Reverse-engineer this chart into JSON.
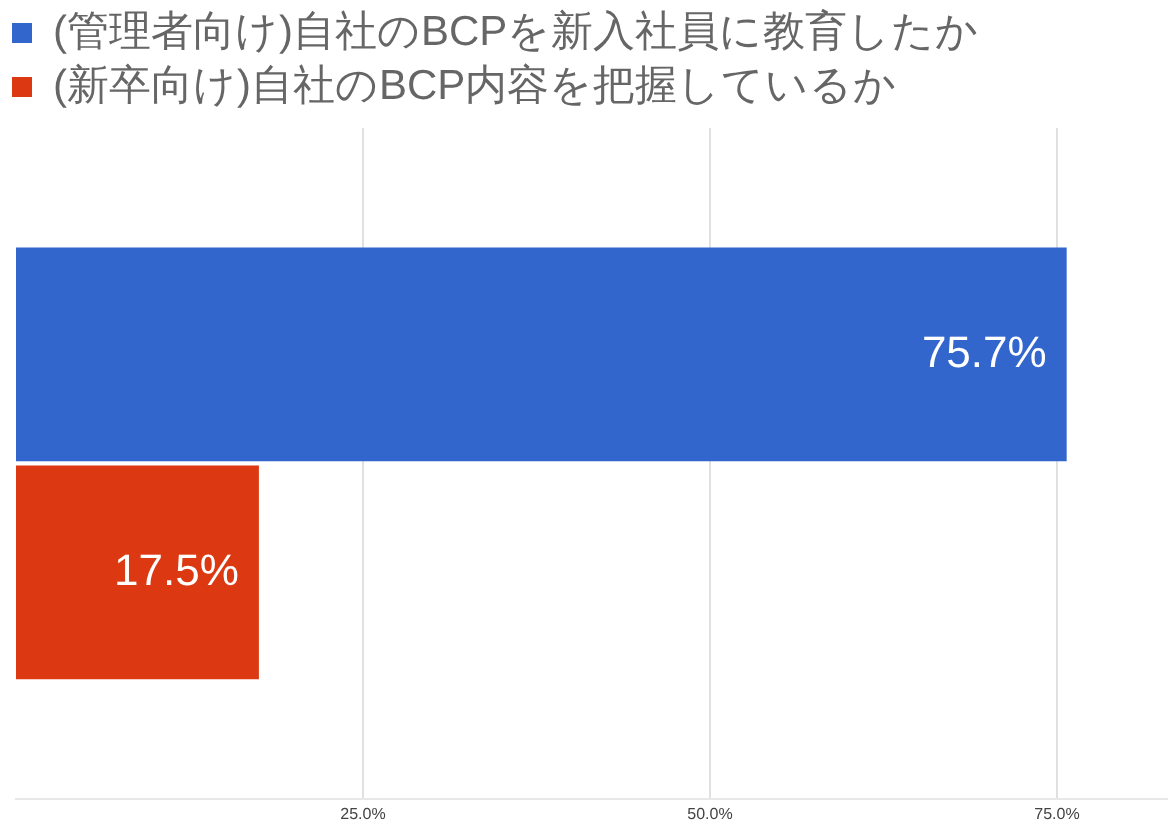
{
  "chart_data": {
    "type": "bar",
    "orientation": "horizontal",
    "categories": [
      null
    ],
    "series": [
      {
        "name": "(管理者向け)自社のBCPを新入社員に教育したか",
        "color": "#3366cc",
        "values": [
          75.7
        ],
        "value_labels": [
          "75.7%"
        ]
      },
      {
        "name": "(新卒向け)自社のBCP内容を把握しているか",
        "color": "#dc3912",
        "values": [
          17.5
        ],
        "value_labels": [
          "17.5%"
        ]
      }
    ],
    "xlim": [
      0,
      83
    ],
    "xticks": [
      {
        "value": 25,
        "label": "25.0%"
      },
      {
        "value": 50,
        "label": "50.0%"
      },
      {
        "value": 75,
        "label": "75.0%"
      }
    ],
    "grid": "x",
    "legend": "top left"
  }
}
